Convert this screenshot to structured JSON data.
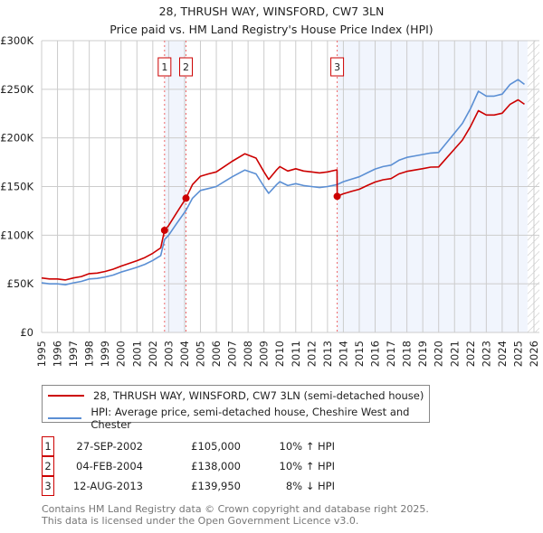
{
  "chart_data": {
    "type": "line",
    "title": "28, THRUSH WAY, WINSFORD, CW7 3LN",
    "subtitle": "Price paid vs. HM Land Registry's House Price Index (HPI)",
    "xlim": [
      1995,
      2026
    ],
    "ylim": [
      0,
      300000
    ],
    "x_ticks": [
      "1995",
      "1996",
      "1997",
      "1998",
      "1999",
      "2000",
      "2001",
      "2002",
      "2003",
      "2004",
      "2005",
      "2006",
      "2007",
      "2008",
      "2009",
      "2010",
      "2011",
      "2012",
      "2013",
      "2014",
      "2015",
      "2016",
      "2017",
      "2018",
      "2019",
      "2020",
      "2021",
      "2022",
      "2023",
      "2024",
      "2025",
      "2026"
    ],
    "y_ticks": [
      {
        "value": 0,
        "label": "£0"
      },
      {
        "value": 50000,
        "label": "£50K"
      },
      {
        "value": 100000,
        "label": "£100K"
      },
      {
        "value": 150000,
        "label": "£150K"
      },
      {
        "value": 200000,
        "label": "£200K"
      },
      {
        "value": 250000,
        "label": "£250K"
      },
      {
        "value": 300000,
        "label": "£300K"
      }
    ],
    "grid": true,
    "shaded_ranges": [
      [
        2002.74,
        2004.09
      ],
      [
        2013.61,
        2025.6
      ]
    ],
    "projection_from": 2025.6,
    "series": [
      {
        "name": "28, THRUSH WAY, WINSFORD, CW7 3LN (semi-detached house)",
        "color": "#cc0000",
        "x": [
          1995,
          1995.5,
          1996,
          1996.5,
          1997,
          1997.5,
          1998,
          1998.5,
          1999,
          1999.5,
          2000,
          2000.5,
          2001,
          2001.5,
          2002,
          2002.5,
          2002.74,
          2003,
          2003.5,
          2004.09,
          2004.5,
          2005,
          2005.5,
          2006,
          2006.5,
          2007,
          2007.8,
          2008.5,
          2009,
          2009.3,
          2009.8,
          2010,
          2010.5,
          2011,
          2011.5,
          2012,
          2012.5,
          2013,
          2013.6,
          2013.61,
          2014,
          2014.5,
          2015,
          2015.5,
          2016,
          2016.5,
          2017,
          2017.5,
          2018,
          2018.5,
          2019,
          2019.5,
          2020,
          2020.5,
          2021,
          2021.5,
          2022,
          2022.5,
          2023,
          2023.5,
          2024,
          2024.5,
          2025,
          2025.4
        ],
        "y": [
          56000,
          55000,
          55000,
          54000,
          56000,
          57500,
          60500,
          61000,
          62700,
          65000,
          68200,
          71000,
          73700,
          77000,
          81400,
          86900,
          105000,
          110000,
          123000,
          138000,
          152000,
          160600,
          163000,
          165000,
          170500,
          176000,
          183700,
          179300,
          165000,
          157300,
          167200,
          170500,
          166000,
          168300,
          166000,
          165000,
          164000,
          165000,
          167200,
          139950,
          142600,
          145000,
          147200,
          151000,
          154600,
          157000,
          158200,
          163000,
          165600,
          167000,
          168400,
          170000,
          170200,
          179400,
          188600,
          197800,
          211600,
          228000,
          223600,
          223600,
          225400,
          234600,
          239200,
          234600
        ]
      },
      {
        "name": "HPI: Average price, semi-detached house, Cheshire West and Chester",
        "color": "#5b8fd4",
        "x": [
          1995,
          1995.5,
          1996,
          1996.5,
          1997,
          1997.5,
          1998,
          1998.5,
          1999,
          1999.5,
          2000,
          2000.5,
          2001,
          2001.5,
          2002,
          2002.5,
          2002.74,
          2003,
          2003.5,
          2004.09,
          2004.5,
          2005,
          2005.5,
          2006,
          2006.5,
          2007,
          2007.8,
          2008.5,
          2009,
          2009.3,
          2009.8,
          2010,
          2010.5,
          2011,
          2011.5,
          2012,
          2012.5,
          2013,
          2013.61,
          2014,
          2014.5,
          2015,
          2015.5,
          2016,
          2016.5,
          2017,
          2017.5,
          2018,
          2018.5,
          2019,
          2019.5,
          2020,
          2020.5,
          2021,
          2021.5,
          2022,
          2022.5,
          2023,
          2023.5,
          2024,
          2024.5,
          2025,
          2025.4
        ],
        "y": [
          51000,
          50000,
          50000,
          49000,
          51000,
          52500,
          55000,
          55500,
          57000,
          59000,
          62000,
          64500,
          67000,
          70000,
          74000,
          79000,
          95500,
          100000,
          112000,
          125500,
          138000,
          146000,
          148000,
          150000,
          155000,
          160000,
          167000,
          163000,
          150000,
          143000,
          152000,
          155000,
          151000,
          153000,
          151000,
          150000,
          149000,
          150000,
          152000,
          155000,
          157500,
          160000,
          164000,
          168000,
          170500,
          172000,
          177000,
          180000,
          181500,
          183000,
          184500,
          185000,
          195000,
          205000,
          215000,
          230000,
          248000,
          243000,
          243000,
          245000,
          255000,
          260000,
          255000
        ]
      }
    ],
    "sales": [
      {
        "label": "1",
        "x": 2002.74,
        "y": 105000,
        "date": "27-SEP-2002",
        "price": "£105,000",
        "hpi": "10% ↑ HPI"
      },
      {
        "label": "2",
        "x": 2004.09,
        "y": 138000,
        "date": "04-FEB-2004",
        "price": "£138,000",
        "hpi": "10% ↑ HPI"
      },
      {
        "label": "3",
        "x": 2013.61,
        "y": 139950,
        "date": "12-AUG-2013",
        "price": "£139,950",
        "hpi": "8% ↓ HPI"
      }
    ]
  },
  "legend": {
    "items": [
      {
        "label": "28, THRUSH WAY, WINSFORD, CW7 3LN (semi-detached house)",
        "color": "#cc0000"
      },
      {
        "label": "HPI: Average price, semi-detached house, Cheshire West and Chester",
        "color": "#5b8fd4"
      }
    ]
  },
  "footer": {
    "line1": "Contains HM Land Registry data © Crown copyright and database right 2025.",
    "line2": "This data is licensed under the Open Government Licence v3.0."
  }
}
